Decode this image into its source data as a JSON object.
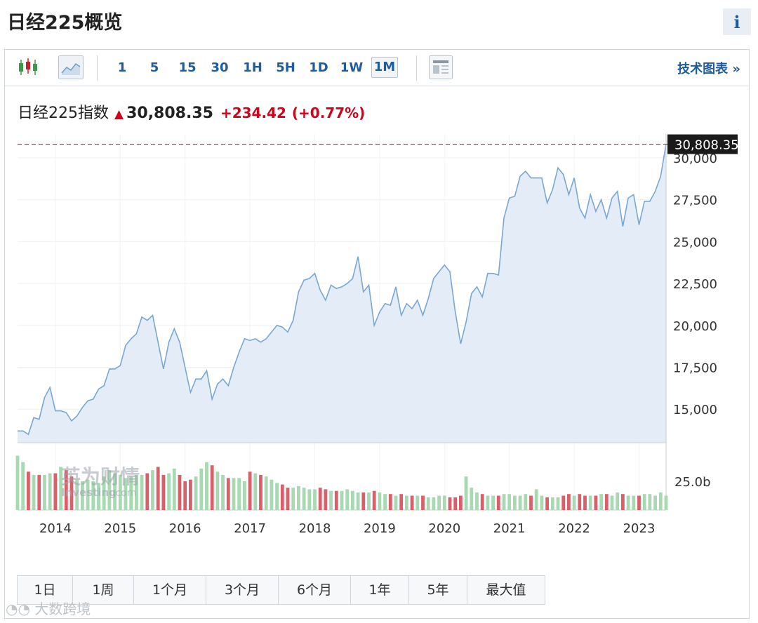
{
  "page": {
    "title": "日经225概览",
    "info_label": "i"
  },
  "toolbar": {
    "intervals": [
      "1",
      "5",
      "15",
      "30",
      "1H",
      "5H",
      "1D",
      "1W",
      "1M"
    ],
    "active_interval": "1M",
    "tech_chart_label": "技术图表 »"
  },
  "quote": {
    "name": "日经225指数",
    "price": "30,808.35",
    "change": "+234.42",
    "change_pct": "(+0.77%)"
  },
  "watermark": {
    "logo_cn": "英为财情",
    "logo_en": "Investing",
    "logo_suffix": ".com",
    "footer": "大数跨境"
  },
  "periods": [
    "1日",
    "1周",
    "1个月",
    "3个月",
    "6个月",
    "1年",
    "5年",
    "最大值"
  ],
  "colors": {
    "line": "#7aa7d1",
    "area": "#e4edf7",
    "up_volume": "#a8d9b2",
    "down_volume": "#d9606a",
    "price_line": "#c0242c",
    "accent": "#1f5c9e"
  },
  "chart_data": {
    "type": "area",
    "ylim": [
      13000,
      31000
    ],
    "yticks": [
      "15,000",
      "17,500",
      "20,000",
      "22,500",
      "25,000",
      "27,500",
      "30,000"
    ],
    "xlabels": [
      "2014",
      "2015",
      "2016",
      "2017",
      "2018",
      "2019",
      "2020",
      "2021",
      "2022",
      "2023"
    ],
    "last_price_label": "30,808.35",
    "volume_tick": "25.0b",
    "series": [
      {
        "values": [
          13700,
          13700,
          13500,
          14500,
          14400,
          15700,
          16300,
          14900,
          14900,
          14800,
          14300,
          14600,
          15100,
          15500,
          15600,
          16200,
          16400,
          17400,
          17400,
          17600,
          18800,
          19200,
          19500,
          20500,
          20300,
          20600,
          19000,
          17400,
          19000,
          19800,
          19000,
          17500,
          16000,
          16800,
          16800,
          17300,
          15600,
          16500,
          16800,
          16400,
          17500,
          18400,
          19200,
          19100,
          19200,
          19000,
          19200,
          19600,
          20000,
          19900,
          19600,
          20300,
          22000,
          22700,
          22800,
          23100,
          22100,
          21500,
          22400,
          22200,
          22300,
          22500,
          22800,
          24100,
          22000,
          22400,
          20000,
          20800,
          21300,
          21200,
          22300,
          20600,
          21300,
          21000,
          21500,
          20600,
          21600,
          22800,
          23200,
          23600,
          23200,
          20800,
          18900,
          20200,
          21900,
          22300,
          21700,
          23100,
          23100,
          23000,
          26400,
          27600,
          27700,
          28900,
          29200,
          28800,
          28800,
          28800,
          27300,
          28100,
          29400,
          29000,
          27800,
          28800,
          27000,
          26400,
          27800,
          26800,
          27500,
          26400,
          27600,
          28000,
          25900,
          27600,
          27800,
          26000,
          27400,
          27400,
          28000,
          28900,
          30808
        ]
      },
      {
        "volume": [
          34,
          30,
          24,
          22,
          22,
          22,
          23,
          23,
          27,
          25,
          21,
          19,
          18,
          19,
          18,
          17,
          21,
          25,
          23,
          22,
          20,
          21,
          22,
          22,
          23,
          25,
          27,
          22,
          23,
          26,
          22,
          18,
          19,
          21,
          26,
          30,
          28,
          24,
          22,
          20,
          20,
          20,
          18,
          24,
          23,
          22,
          21,
          19,
          17,
          16,
          14,
          14,
          15,
          14,
          13,
          13,
          14,
          13,
          12,
          12,
          12,
          13,
          12,
          11,
          11,
          11,
          12,
          11,
          10,
          10,
          9,
          10,
          9,
          9,
          9,
          9,
          8,
          8,
          9,
          9,
          8,
          8,
          9,
          21,
          14,
          11,
          10,
          9,
          9,
          9,
          10,
          10,
          9,
          9,
          10,
          9,
          13,
          9,
          8,
          8,
          8,
          9,
          10,
          9,
          10,
          9,
          9,
          9,
          10,
          10,
          9,
          11,
          10,
          9,
          9,
          9,
          10,
          10,
          9,
          11,
          9
        ]
      }
    ]
  }
}
